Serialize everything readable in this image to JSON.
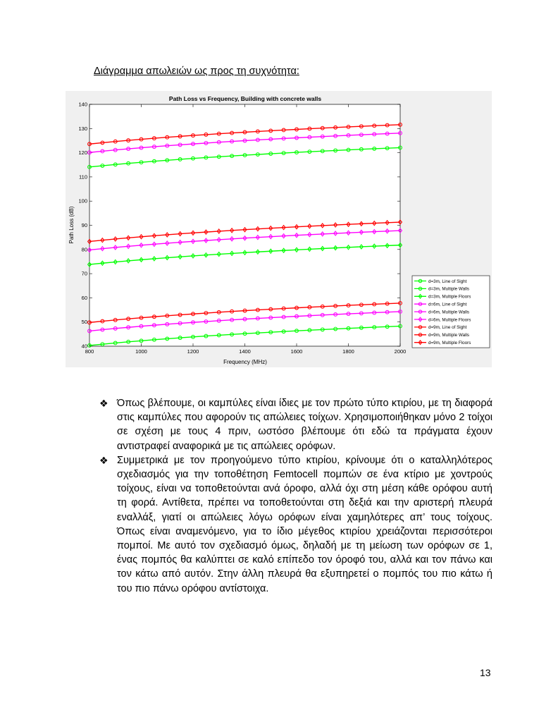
{
  "heading": "Διάγραμμα απωλειών ως προς τη συχνότητα:",
  "bullets": [
    {
      "icon": "diamond-ornament-icon",
      "text": "Όπως βλέπουμε, οι καμπύλες είναι ίδιες με τον πρώτο τύπο κτιρίου, με τη διαφορά στις καμπύλες που αφορούν τις απώλειες τοίχων. Χρησιμοποιήθηκαν μόνο 2 τοίχοι σε σχέση με τους 4 πριν, ωστόσο βλέπουμε ότι εδώ τα πράγματα έχουν αντιστραφεί αναφορικά με τις απώλειες ορόφων."
    },
    {
      "icon": "diamond-ornament-icon",
      "text": "Συμμετρικά με τον προηγούμενο τύπο κτιρίου, κρίνουμε ότι ο καταλληλότερος σχεδιασμός για την τοποθέτηση Femtocell πομπών σε ένα κτίριο με χοντρούς τοίχους, είναι να τοποθετούνται ανά όροφο, αλλά όχι στη μέση κάθε ορόφου αυτή τη φορά. Αντίθετα, πρέπει να τοποθετούνται στη δεξιά και την αριστερή πλευρά εναλλάξ, γιατί οι απώλειες λόγω ορόφων είναι χαμηλότερες απ’ τους τοίχους. Όπως είναι αναμενόμενο, για το ίδιο μέγεθος κτιρίου χρειάζονται περισσότεροι πομποί. Με αυτό τον σχεδιασμό όμως, δηλαδή με τη μείωση των ορόφων σε 1, ένας πομπός θα καλύπτει σε καλό επίπεδο τον όροφό του, αλλά και τον πάνω και τον κάτω από αυτόν. Στην άλλη πλευρά θα εξυπηρετεί ο πομπός του πιο κάτω ή του πιο πάνω ορόφου αντίστοιχα."
    }
  ],
  "page_number": "13",
  "chart_data": {
    "type": "line",
    "title": "Path Loss vs Frequency, Building with concrete walls",
    "xlabel": "Frequency (MHz)",
    "ylabel": "Path Loss (dB)",
    "xlim": [
      800,
      2000
    ],
    "ylim": [
      40,
      140
    ],
    "xticks": [
      800,
      1000,
      1200,
      1400,
      1600,
      1800,
      2000
    ],
    "yticks": [
      40,
      50,
      60,
      70,
      80,
      90,
      100,
      110,
      120,
      130,
      140
    ],
    "grid": false,
    "legend_position": "lower-right",
    "x_start": 800,
    "x_end": 2000,
    "points_per_series": 25,
    "series": [
      {
        "name": "d=3m, Line of Sight",
        "color": "#00ff00",
        "marker": "circle",
        "start": 40.3,
        "end": 48.3
      },
      {
        "name": "d=3m, Multiple Walls",
        "color": "#00ff00",
        "marker": "circle",
        "start": 114.1,
        "end": 122.1
      },
      {
        "name": "d=3m, Multiple Floors",
        "color": "#00ff00",
        "marker": "diamond",
        "start": 73.8,
        "end": 81.8
      },
      {
        "name": "d=6m, Line of Sight",
        "color": "#ff00ff",
        "marker": "circle",
        "start": 46.3,
        "end": 54.3
      },
      {
        "name": "d=6m, Multiple Walls",
        "color": "#ff00ff",
        "marker": "circle",
        "start": 120.1,
        "end": 128.1
      },
      {
        "name": "d=6m, Multiple Floors",
        "color": "#ff00ff",
        "marker": "diamond",
        "start": 79.8,
        "end": 87.8
      },
      {
        "name": "d=9m, Line of Sight",
        "color": "#ff0000",
        "marker": "circle",
        "start": 49.8,
        "end": 57.8
      },
      {
        "name": "d=9m, Multiple Walls",
        "color": "#ff0000",
        "marker": "circle",
        "start": 123.6,
        "end": 131.6
      },
      {
        "name": "d=9m, Multiple Floors",
        "color": "#ff0000",
        "marker": "diamond",
        "start": 83.3,
        "end": 91.3
      }
    ]
  }
}
